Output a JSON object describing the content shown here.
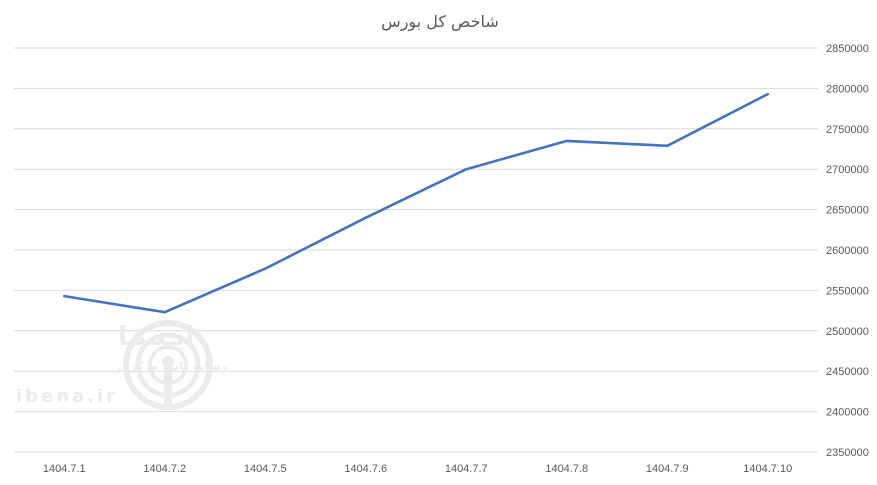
{
  "chart_data": {
    "type": "line",
    "title": "شاخص کل بورس",
    "xlabel": "",
    "ylabel": "",
    "categories": [
      "1404.7.1",
      "1404.7.2",
      "1404.7.5",
      "1404.7.6",
      "1404.7.7",
      "1404.7.8",
      "1404.7.9",
      "1404.7.10"
    ],
    "series": [
      {
        "values": [
          2543000,
          2523000,
          2577000,
          2640000,
          2700000,
          2735000,
          2729000,
          2793000
        ]
      }
    ],
    "ylim": [
      2350000,
      2850000
    ],
    "ytick_step": 50000,
    "yticks": [
      "2350000",
      "2400000",
      "2450000",
      "2500000",
      "2550000",
      "2600000",
      "2650000",
      "2700000",
      "2750000",
      "2800000",
      "2850000"
    ],
    "y_axis_position": "right",
    "grid": true,
    "legend": "none",
    "line_color": "#4472c4"
  },
  "watermark": {
    "brand_fa": "ایـبـنـا",
    "subtitle_fa": "رسانه بانک مرکزی",
    "url": "ibena.ir",
    "icon": "broadcast-rings-icon"
  }
}
